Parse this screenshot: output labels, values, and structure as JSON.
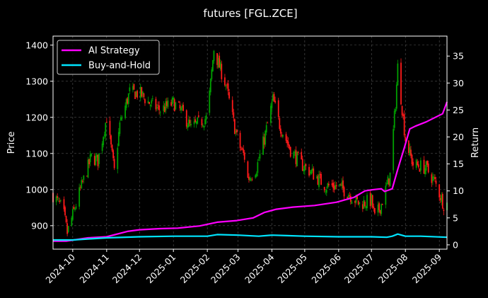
{
  "chart_data": {
    "type": "line",
    "title": "futures [FGL.ZCE]",
    "ylabel_left": "Price",
    "ylabel_right": "Return",
    "xlabel": "",
    "x_range": [
      "2024-09-13",
      "2025-09-08"
    ],
    "y_left_range": [
      835,
      1425
    ],
    "y_right_range": [
      -0.8,
      38.7
    ],
    "left_ticks": [
      900,
      1000,
      1100,
      1200,
      1300,
      1400
    ],
    "right_ticks": [
      0,
      5,
      10,
      15,
      20,
      25,
      30,
      35
    ],
    "x_ticks": [
      "2024-10",
      "2024-11",
      "2024-12",
      "2025-01",
      "2025-02",
      "2025-03",
      "2025-04",
      "2025-05",
      "2025-06",
      "2025-07",
      "2025-08",
      "2025-09"
    ],
    "grid": true,
    "legend_position": "top-left",
    "legend": [
      {
        "label": "AI Strategy",
        "color": "#ff00ff"
      },
      {
        "label": "Buy-and-Hold",
        "color": "#00e5ff"
      }
    ],
    "colors": {
      "up": "#00a000",
      "down": "#ff1a1a",
      "background": "#000000",
      "grid": "#555555"
    },
    "price_anchors": {
      "dates": [
        "2024-09-13",
        "2024-09-22",
        "2024-09-26",
        "2024-10-04",
        "2024-10-08",
        "2024-10-18",
        "2024-10-24",
        "2024-11-01",
        "2024-11-08",
        "2024-11-13",
        "2024-11-22",
        "2024-12-02",
        "2024-12-10",
        "2024-12-20",
        "2025-01-01",
        "2025-01-10",
        "2025-01-17",
        "2025-02-01",
        "2025-02-07",
        "2025-02-11",
        "2025-02-18",
        "2025-02-24",
        "2025-03-01",
        "2025-03-07",
        "2025-03-10",
        "2025-03-18",
        "2025-03-25",
        "2025-04-02",
        "2025-04-08",
        "2025-04-18",
        "2025-04-28",
        "2025-05-10",
        "2025-05-20",
        "2025-06-01",
        "2025-06-10",
        "2025-06-20",
        "2025-07-01",
        "2025-07-04",
        "2025-07-10",
        "2025-07-18",
        "2025-07-23",
        "2025-07-25",
        "2025-08-01",
        "2025-08-08",
        "2025-08-20",
        "2025-08-28",
        "2025-09-05"
      ],
      "values": [
        985,
        945,
        880,
        960,
        1000,
        1090,
        1080,
        1200,
        1050,
        1180,
        1270,
        1265,
        1240,
        1220,
        1240,
        1210,
        1170,
        1200,
        1390,
        1350,
        1290,
        1200,
        1130,
        1090,
        1030,
        1060,
        1140,
        1250,
        1180,
        1110,
        1070,
        1040,
        1010,
        1010,
        990,
        960,
        970,
        920,
        960,
        1040,
        1240,
        1340,
        1140,
        1070,
        1060,
        1020,
        960
      ]
    },
    "series": [
      {
        "name": "AI Strategy",
        "axis": "right",
        "x": [
          "2024-09-13",
          "2024-09-25",
          "2024-10-15",
          "2024-11-01",
          "2024-11-20",
          "2024-12-01",
          "2024-12-20",
          "2025-01-05",
          "2025-01-25",
          "2025-02-10",
          "2025-02-28",
          "2025-03-15",
          "2025-03-25",
          "2025-04-05",
          "2025-04-20",
          "2025-05-10",
          "2025-05-30",
          "2025-06-15",
          "2025-06-25",
          "2025-07-01",
          "2025-07-10",
          "2025-07-13",
          "2025-07-20",
          "2025-07-25",
          "2025-07-31",
          "2025-08-05",
          "2025-08-10",
          "2025-08-20",
          "2025-08-27",
          "2025-09-04",
          "2025-09-08"
        ],
        "y": [
          0.7,
          0.7,
          1.3,
          1.5,
          2.5,
          2.8,
          3.0,
          3.1,
          3.5,
          4.2,
          4.5,
          5.0,
          6.0,
          6.6,
          7.0,
          7.3,
          7.9,
          8.8,
          10.0,
          10.2,
          10.4,
          9.9,
          10.4,
          14.0,
          18.0,
          21.5,
          22.0,
          22.8,
          23.5,
          24.3,
          26.5
        ]
      },
      {
        "name": "Buy-and-Hold",
        "axis": "right",
        "x": [
          "2024-09-13",
          "2024-10-01",
          "2024-11-01",
          "2024-12-01",
          "2025-01-01",
          "2025-02-01",
          "2025-02-10",
          "2025-03-01",
          "2025-03-20",
          "2025-04-01",
          "2025-04-15",
          "2025-05-01",
          "2025-06-01",
          "2025-07-01",
          "2025-07-15",
          "2025-07-20",
          "2025-07-25",
          "2025-08-01",
          "2025-08-15",
          "2025-09-08"
        ],
        "y": [
          0.9,
          0.9,
          1.3,
          1.5,
          1.6,
          1.6,
          1.9,
          1.8,
          1.6,
          1.8,
          1.7,
          1.6,
          1.5,
          1.5,
          1.4,
          1.6,
          2.0,
          1.6,
          1.6,
          1.4
        ]
      }
    ]
  }
}
